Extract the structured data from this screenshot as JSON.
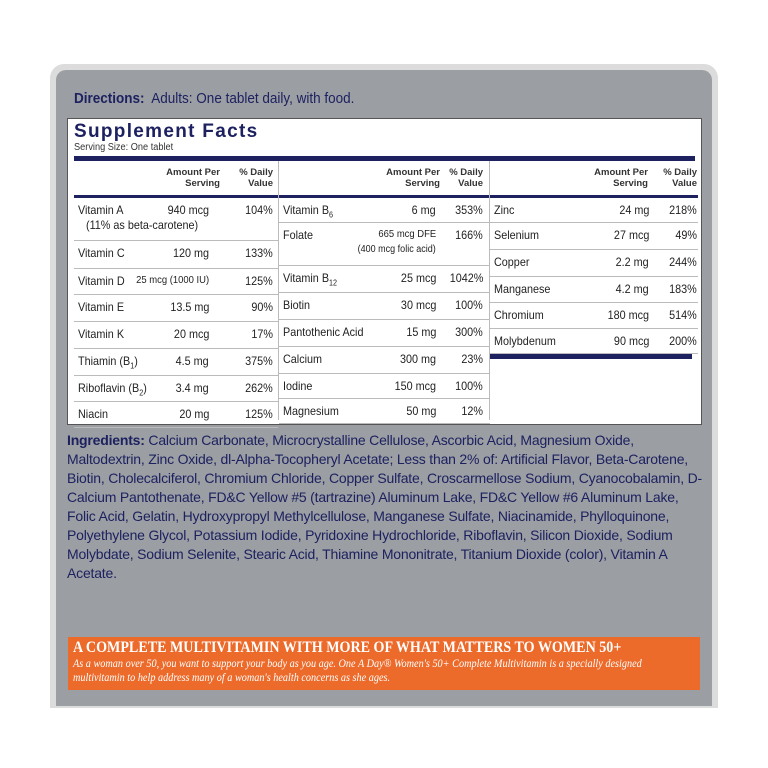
{
  "directions": {
    "label": "Directions:",
    "text": "Adults:  One tablet daily, with food."
  },
  "supplement_facts": {
    "title": "Supplement Facts",
    "serving_size": "Serving Size: One tablet",
    "header": {
      "amount": "Amount Per Serving",
      "dv": "% Daily Value"
    },
    "columns": [
      [
        {
          "name": "Vitamin A",
          "amount": "940 mcg",
          "dv": "104%",
          "note": "(11% as beta-carotene)"
        },
        {
          "name": "Vitamin C",
          "amount": "120 mg",
          "dv": "133%"
        },
        {
          "name": "Vitamin D",
          "amount": "25 mcg (1000 IU)",
          "dv": "125%"
        },
        {
          "name": "Vitamin E",
          "amount": "13.5 mg",
          "dv": "90%"
        },
        {
          "name": "Vitamin K",
          "amount": "20 mcg",
          "dv": "17%"
        },
        {
          "name": "Thiamin (B",
          "sub": "1",
          "suffix": ")",
          "amount": "4.5 mg",
          "dv": "375%"
        },
        {
          "name": "Riboflavin (B",
          "sub": "2",
          "suffix": ")",
          "amount": "3.4 mg",
          "dv": "262%"
        },
        {
          "name": "Niacin",
          "amount": "20 mg",
          "dv": "125%"
        }
      ],
      [
        {
          "name": "Vitamin B",
          "sub": "6",
          "amount": "6 mg",
          "dv": "353%"
        },
        {
          "name": "Folate",
          "amount": "665 mcg DFE",
          "dv": "166%",
          "amount_note": "(400 mcg folic acid)"
        },
        {
          "name": "Vitamin B",
          "sub": "12",
          "amount": "25 mcg",
          "dv": "1042%"
        },
        {
          "name": "Biotin",
          "amount": "30 mcg",
          "dv": "100%"
        },
        {
          "name": "Pantothenic Acid",
          "amount": "15 mg",
          "dv": "300%"
        },
        {
          "name": "Calcium",
          "amount": "300 mg",
          "dv": "23%"
        },
        {
          "name": "Iodine",
          "amount": "150 mcg",
          "dv": "100%"
        },
        {
          "name": "Magnesium",
          "amount": "50 mg",
          "dv": "12%"
        }
      ],
      [
        {
          "name": "Zinc",
          "amount": "24 mg",
          "dv": "218%"
        },
        {
          "name": "Selenium",
          "amount": "27 mcg",
          "dv": "49%"
        },
        {
          "name": "Copper",
          "amount": "2.2 mg",
          "dv": "244%"
        },
        {
          "name": "Manganese",
          "amount": "4.2 mg",
          "dv": "183%"
        },
        {
          "name": "Chromium",
          "amount": "180 mcg",
          "dv": "514%"
        },
        {
          "name": "Molybdenum",
          "amount": "90 mcg",
          "dv": "200%"
        }
      ]
    ]
  },
  "ingredients": {
    "label": "Ingredients:",
    "text": "Calcium Carbonate, Microcrystalline Cellulose, Ascorbic Acid, Magnesium Oxide, Maltodextrin, Zinc Oxide, dl-Alpha-Tocopheryl Acetate; Less than 2% of: Artificial Flavor, Beta-Carotene, Biotin, Cholecalciferol, Chromium Chloride, Copper Sulfate, Croscarmellose Sodium, Cyanocobalamin, D-Calcium Pantothenate, FD&C Yellow #5 (tartrazine) Aluminum Lake, FD&C Yellow #6 Aluminum Lake, Folic Acid, Gelatin, Hydroxypropyl Methylcellulose, Manganese Sulfate, Niacinamide, Phylloquinone, Polyethylene Glycol, Potassium Iodide, Pyridoxine Hydrochloride, Riboflavin, Silicon Dioxide, Sodium Molybdate, Sodium Selenite, Stearic Acid, Thiamine Mononitrate, Titanium Dioxide (color), Vitamin A Acetate."
  },
  "banner": {
    "headline": "A COMPLETE MULTIVITAMIN WITH MORE OF WHAT MATTERS TO WOMEN 50+",
    "body": "As a woman over 50, you want to support your body as you age. One A Day® Women's 50+ Complete Multivitamin is a specially designed multivitamin to help address many of a woman's health concerns as she ages."
  },
  "colors": {
    "navy": "#1d2160",
    "orange": "#ec6a2a",
    "panel_gray": "#9b9ea2"
  }
}
